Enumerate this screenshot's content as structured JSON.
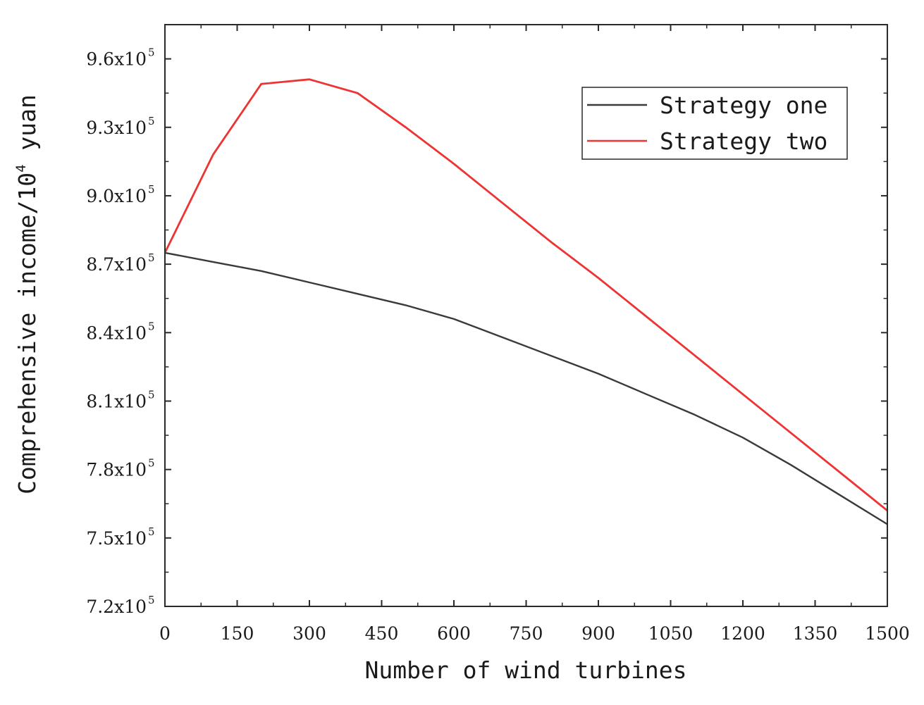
{
  "chart_data": {
    "type": "line",
    "title": "",
    "xlabel": "Number of wind turbines",
    "ylabel": {
      "prefix": "Comprehensive income/10",
      "exponent": "4",
      "suffix": " yuan"
    },
    "xlim": [
      0,
      1500
    ],
    "ylim": [
      720000,
      975000
    ],
    "xticks": [
      0,
      150,
      300,
      450,
      600,
      750,
      900,
      1050,
      1200,
      1350,
      1500
    ],
    "xtick_labels": [
      "0",
      "150",
      "300",
      "450",
      "600",
      "750",
      "900",
      "1050",
      "1200",
      "1350",
      "1500"
    ],
    "yticks": [
      720000,
      750000,
      780000,
      810000,
      840000,
      870000,
      900000,
      930000,
      960000
    ],
    "ytick_labels": [
      {
        "mantissa": "7.2x10",
        "exponent": "5"
      },
      {
        "mantissa": "7.5x10",
        "exponent": "5"
      },
      {
        "mantissa": "7.8x10",
        "exponent": "5"
      },
      {
        "mantissa": "8.1x10",
        "exponent": "5"
      },
      {
        "mantissa": "8.4x10",
        "exponent": "5"
      },
      {
        "mantissa": "8.7x10",
        "exponent": "5"
      },
      {
        "mantissa": "9.0x10",
        "exponent": "5"
      },
      {
        "mantissa": "9.3x10",
        "exponent": "5"
      },
      {
        "mantissa": "9.6x10",
        "exponent": "5"
      }
    ],
    "x": [
      0,
      100,
      200,
      300,
      400,
      500,
      600,
      700,
      800,
      900,
      1000,
      1100,
      1200,
      1300,
      1400,
      1500
    ],
    "series": [
      {
        "name": "Strategy one",
        "color": "#3a3a3a",
        "values": [
          875000,
          871000,
          867000,
          862000,
          857000,
          852000,
          846000,
          838000,
          830000,
          822000,
          813000,
          804000,
          794000,
          782000,
          769000,
          756000
        ]
      },
      {
        "name": "Strategy two",
        "color": "#ee3333",
        "values": [
          875000,
          918000,
          949000,
          951000,
          945000,
          930000,
          914000,
          897000,
          880000,
          864000,
          847000,
          830000,
          813000,
          796000,
          779000,
          762000
        ]
      }
    ],
    "legend_position": "top-right",
    "grid": false
  }
}
